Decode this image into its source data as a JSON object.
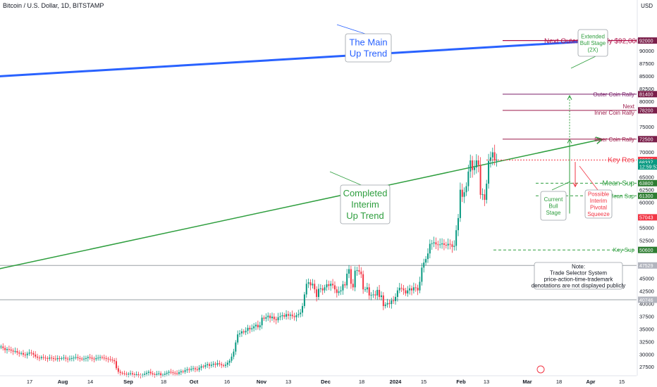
{
  "header": {
    "symbol_title": "Bitcoin / U.S. Dollar, 1D, BITSTAMP"
  },
  "price_axis": {
    "unit": "USD",
    "ticks": [
      27500,
      30000,
      32500,
      35000,
      37500,
      40000,
      42500,
      45000,
      47500,
      50000,
      52500,
      55000,
      57500,
      60000,
      62500,
      65000,
      67500,
      70000,
      72500,
      75000,
      77500,
      80000,
      82500,
      85000,
      87500,
      90000
    ],
    "tick_labels": [
      "27500",
      "30000",
      "32500",
      "35000",
      "37500",
      "40000",
      "42500",
      "45000",
      "47500",
      "",
      "52500",
      "55000",
      "",
      "60000",
      "62500",
      "65000",
      "",
      "70000",
      "",
      "75000",
      "",
      "80000",
      "82500",
      "85000",
      "87500",
      "90000"
    ],
    "badges": [
      {
        "label": "92000",
        "value": 92000,
        "color": "#7a1f4a"
      },
      {
        "label": "81400",
        "value": 81400,
        "color": "#7a1f4a"
      },
      {
        "label": "78200",
        "value": 78200,
        "color": "#7a1f4a"
      },
      {
        "label": "72500",
        "value": 72500,
        "color": "#7a1f4a"
      },
      {
        "label": "68386",
        "value": 68386,
        "color": "#f23645"
      },
      {
        "label": "68337",
        "value": 67900,
        "color": "#089981"
      },
      {
        "label": "12:59:53",
        "value": 67100,
        "color": "#089981"
      },
      {
        "label": "63800",
        "value": 63800,
        "color": "#2e7d32"
      },
      {
        "label": "61300",
        "value": 61300,
        "color": "#2e7d32"
      },
      {
        "label": "57043",
        "value": 57043,
        "color": "#f23645"
      },
      {
        "label": "50600",
        "value": 50600,
        "color": "#2e7d32"
      },
      {
        "label": "47529",
        "value": 47529,
        "color": "#b2b5be"
      },
      {
        "label": "40746",
        "value": 40746,
        "color": "#b2b5be"
      }
    ]
  },
  "time_axis": {
    "labels": [
      "17",
      "Aug",
      "14",
      "Sep",
      "18",
      "Oct",
      "16",
      "Nov",
      "13",
      "Dec",
      "18",
      "2024",
      "15",
      "Feb",
      "13",
      "Mar",
      "18",
      "Apr",
      "15"
    ],
    "bold": [
      "Aug",
      "Sep",
      "Oct",
      "Nov",
      "Dec",
      "2024",
      "Feb",
      "Mar",
      "Apr"
    ]
  },
  "annotations": {
    "main_trend": "The Main|Up Trend",
    "interim_trend": "Completed|Interim|Up Trend",
    "extended_bull": "Extended|Bull Stage|(2X)",
    "current_bull": "Current|Bull|Stage",
    "pivotal_squeeze": "Possible|Interim|Pivotal|Squeeze",
    "note": "Note:|Trade Selector System|price-action-time-trademark|denotations are not displayed publicly"
  },
  "levels": [
    {
      "label": "Next Outer Coin Rally $92,000",
      "value": 92000,
      "color": "#b0124a",
      "style": "solid"
    },
    {
      "label": "Outer Coin Rally",
      "value": 81400,
      "color": "#7a1f6a",
      "style": "solid"
    },
    {
      "label": "Next|Inner Coin Rally",
      "value": 78200,
      "color": "#9c1a4a",
      "style": "solid"
    },
    {
      "label": "Inner Coin Rally",
      "value": 72500,
      "color": "#9c1a4a",
      "style": "solid"
    },
    {
      "label": "Key Res",
      "value": 68386,
      "color": "#f23645",
      "style": "dotted"
    },
    {
      "label": "Mean Sup",
      "value": 63800,
      "color": "#2e9e3e",
      "style": "dashed"
    },
    {
      "label": "Mean Sup",
      "value": 61300,
      "color": "#2e9e3e",
      "style": "dashed"
    },
    {
      "label": "Key Sup",
      "value": 50600,
      "color": "#2e9e3e",
      "style": "dashed"
    }
  ],
  "chart_data": {
    "type": "candlestick",
    "title": "Bitcoin / U.S. Dollar, 1D, BITSTAMP",
    "ylabel": "USD",
    "ylim": [
      26000,
      93000
    ],
    "grid": false,
    "horizontal_lines": [
      47529,
      40746
    ],
    "trendlines": [
      {
        "name": "The Main Up Trend",
        "from": {
          "bar": -40,
          "value": 84000
        },
        "to": {
          "bar": 300,
          "value": 92000
        },
        "color": "#2962ff"
      },
      {
        "name": "Completed Interim Up Trend",
        "from": {
          "bar": -40,
          "value": 43500
        },
        "to": {
          "bar": 300,
          "value": 72500
        },
        "color": "#2e9e3e"
      }
    ],
    "closes": [
      31500,
      31200,
      30800,
      31000,
      30900,
      30700,
      30500,
      30600,
      30300,
      30100,
      30200,
      29900,
      29800,
      30100,
      30300,
      30200,
      29900,
      29500,
      29300,
      29200,
      29400,
      29300,
      29200,
      29100,
      29300,
      29200,
      29100,
      29000,
      29200,
      29100,
      29200,
      29300,
      29100,
      29000,
      29100,
      29200,
      29300,
      29400,
      29200,
      29100,
      29000,
      29100,
      29200,
      29400,
      29300,
      29100,
      29000,
      29200,
      29300,
      29400,
      29300,
      29200,
      29100,
      29000,
      28900,
      28800,
      28600,
      27200,
      26500,
      26300,
      26200,
      26100,
      26000,
      26100,
      26200,
      26000,
      25900,
      26000,
      25800,
      25700,
      25900,
      26100,
      26300,
      26500,
      26200,
      26000,
      25900,
      26100,
      26200,
      25800,
      25900,
      26100,
      26300,
      26500,
      26400,
      26300,
      26200,
      26100,
      26400,
      26600,
      26500,
      26800,
      27000,
      26900,
      27100,
      27200,
      27000,
      26900,
      27300,
      27600,
      27500,
      27800,
      28000,
      27700,
      27900,
      28100,
      27900,
      28200,
      28000,
      27800,
      27700,
      27900,
      28300,
      28700,
      29500,
      30500,
      32300,
      33900,
      34100,
      34500,
      34300,
      34600,
      35200,
      34900,
      35100,
      35500,
      35800,
      35300,
      35700,
      37200,
      37000,
      37300,
      37600,
      37100,
      37400,
      36900,
      36700,
      37300,
      37500,
      37700,
      37400,
      37900,
      37600,
      37800,
      37500,
      37300,
      37700,
      37900,
      38200,
      39500,
      41800,
      43900,
      44200,
      43600,
      43900,
      42800,
      41300,
      42900,
      43000,
      42600,
      43200,
      43800,
      43500,
      43900,
      43600,
      42800,
      42100,
      42400,
      42600,
      43800,
      43600,
      45900,
      46800,
      43900,
      43200,
      46500,
      46600,
      46300,
      45800,
      42800,
      42800,
      43200,
      41600,
      41700,
      41800,
      41600,
      42700,
      41300,
      41600,
      39500,
      39800,
      40100,
      39900,
      40600,
      40500,
      41300,
      42600,
      43100,
      43000,
      42600,
      42000,
      42600,
      43000,
      42600,
      43200,
      43100,
      42600,
      44300,
      47100,
      48100,
      48800,
      49900,
      51800,
      51900,
      52100,
      51700,
      51600,
      51700,
      51900,
      51600,
      51500,
      51800,
      51700,
      51200,
      51400,
      54500,
      56900,
      62500,
      61100,
      62000,
      63200,
      66100,
      68300,
      66400,
      66900,
      68300,
      67400,
      61500,
      61600,
      60500,
      63700,
      68200,
      68900,
      69900,
      68300,
      68400
    ]
  }
}
